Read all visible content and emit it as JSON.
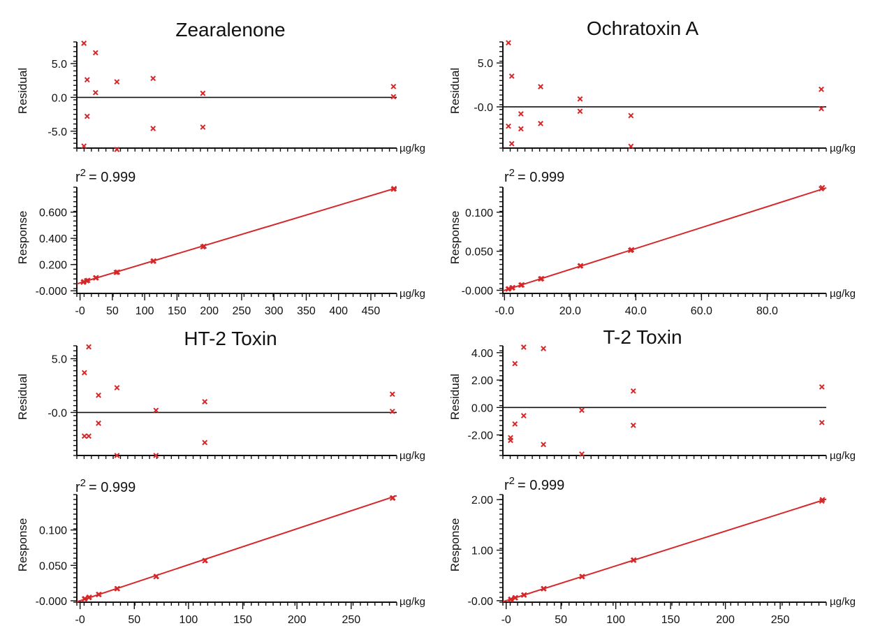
{
  "chart_data": [
    {
      "type": "scatter",
      "title": "Zearalenone",
      "residual": {
        "ylabel": "Residual",
        "xunit": "µg/kg",
        "xlim": [
          -5,
          490
        ],
        "ylim": [
          -7.5,
          8.2
        ],
        "yticks": [
          5.0,
          0.0,
          -5.0
        ],
        "yticklabels": [
          "5.0",
          "0.0",
          "-5.0"
        ],
        "points": [
          [
            6,
            8.0
          ],
          [
            6,
            -7.2
          ],
          [
            11,
            2.6
          ],
          [
            11,
            -2.8
          ],
          [
            24,
            6.6
          ],
          [
            24,
            0.7
          ],
          [
            57,
            2.3
          ],
          [
            57,
            -7.7
          ],
          [
            113,
            2.8
          ],
          [
            113,
            -4.6
          ],
          [
            190,
            0.6
          ],
          [
            190,
            -4.4
          ],
          [
            485,
            1.6
          ],
          [
            485,
            0.1
          ]
        ]
      },
      "response": {
        "ylabel": "Response",
        "xunit": "µg/kg",
        "r2_label": "r",
        "r2_sup": "2",
        "r2_value": "= 0.999",
        "xlim": [
          -5,
          490
        ],
        "ylim": [
          -0.02,
          0.79
        ],
        "xticks": [
          0,
          50,
          100,
          150,
          200,
          250,
          300,
          350,
          400,
          450
        ],
        "xticklabels": [
          "-0",
          "50",
          "100",
          "150",
          "200",
          "250",
          "300",
          "350",
          "400",
          "450"
        ],
        "yticks": [
          0.0,
          0.2,
          0.4,
          0.6
        ],
        "yticklabels": [
          "-0.000",
          "0.200",
          "0.400",
          "0.600"
        ],
        "fit": [
          [
            -5,
            0.053
          ],
          [
            490,
            0.785
          ]
        ],
        "points": [
          [
            5,
            0.065
          ],
          [
            6,
            0.07
          ],
          [
            10,
            0.076
          ],
          [
            12,
            0.08
          ],
          [
            24,
            0.098
          ],
          [
            25,
            0.1
          ],
          [
            56,
            0.14
          ],
          [
            58,
            0.143
          ],
          [
            113,
            0.225
          ],
          [
            114,
            0.228
          ],
          [
            190,
            0.335
          ],
          [
            192,
            0.34
          ],
          [
            485,
            0.775
          ],
          [
            486,
            0.78
          ]
        ]
      }
    },
    {
      "type": "scatter",
      "title": "Ochratoxin A",
      "residual": {
        "ylabel": "Residual",
        "xunit": "µg/kg",
        "xlim": [
          -0.5,
          98
        ],
        "ylim": [
          -4.7,
          7.4
        ],
        "yticks": [
          5.0,
          0.0
        ],
        "yticklabels": [
          "5.0",
          "-0.0"
        ],
        "points": [
          [
            1.2,
            7.3
          ],
          [
            1.2,
            -2.2
          ],
          [
            2.2,
            3.5
          ],
          [
            2.2,
            -4.2
          ],
          [
            5.0,
            -0.8
          ],
          [
            5.0,
            -2.5
          ],
          [
            11,
            2.3
          ],
          [
            11,
            -1.9
          ],
          [
            23,
            0.9
          ],
          [
            23,
            -0.5
          ],
          [
            38.5,
            -1.0
          ],
          [
            38.5,
            -4.5
          ],
          [
            96.5,
            2.0
          ],
          [
            96.5,
            -0.2
          ]
        ]
      },
      "response": {
        "ylabel": "Response",
        "xunit": "µg/kg",
        "r2_label": "r",
        "r2_sup": "2",
        "r2_value": "= 0.999",
        "xlim": [
          -0.5,
          98
        ],
        "ylim": [
          -0.004,
          0.132
        ],
        "xticks": [
          0,
          20,
          40,
          60,
          80
        ],
        "xticklabels": [
          "-0.0",
          "20.0",
          "40.0",
          "60.0",
          "80.0"
        ],
        "yticks": [
          0.0,
          0.05,
          0.1
        ],
        "yticklabels": [
          "-0.000",
          "0.050",
          "0.100"
        ],
        "fit": [
          [
            -0.5,
            -0.0007
          ],
          [
            98,
            0.1312
          ]
        ],
        "points": [
          [
            1.1,
            0.0015
          ],
          [
            1.3,
            0.002
          ],
          [
            2.3,
            0.003
          ],
          [
            2.5,
            0.0035
          ],
          [
            5.0,
            0.0065
          ],
          [
            5.3,
            0.007
          ],
          [
            11,
            0.0145
          ],
          [
            11.3,
            0.015
          ],
          [
            23,
            0.031
          ],
          [
            23.2,
            0.0315
          ],
          [
            38.4,
            0.051
          ],
          [
            38.7,
            0.052
          ],
          [
            96.5,
            0.13
          ],
          [
            96.8,
            0.1315
          ]
        ]
      }
    },
    {
      "type": "scatter",
      "title": "HT-2 Toxin",
      "residual": {
        "ylabel": "Residual",
        "xunit": "µg/kg",
        "xlim": [
          -3,
          292
        ],
        "ylim": [
          -4.0,
          6.2
        ],
        "yticks": [
          5.0,
          0.0
        ],
        "yticklabels": [
          "5.0",
          "-0.0"
        ],
        "points": [
          [
            4,
            3.7
          ],
          [
            4,
            -2.2
          ],
          [
            8,
            6.1
          ],
          [
            8,
            -2.2
          ],
          [
            17,
            1.6
          ],
          [
            17,
            -1.0
          ],
          [
            34,
            2.3
          ],
          [
            34,
            -4.0
          ],
          [
            70,
            0.2
          ],
          [
            70,
            -4.0
          ],
          [
            115,
            1.0
          ],
          [
            115,
            -2.8
          ],
          [
            288,
            1.7
          ],
          [
            288,
            0.1
          ]
        ]
      },
      "response": {
        "ylabel": "Response",
        "xunit": "µg/kg",
        "r2_label": "r",
        "r2_sup": "2",
        "r2_value": "= 0.999",
        "xlim": [
          -3,
          292
        ],
        "ylim": [
          -0.002,
          0.15
        ],
        "xticks": [
          0,
          50,
          100,
          150,
          200,
          250
        ],
        "xticklabels": [
          "-0",
          "50",
          "100",
          "150",
          "200",
          "250"
        ],
        "yticks": [
          0.0,
          0.05,
          0.1
        ],
        "yticklabels": [
          "-0.000",
          "0.050",
          "0.100"
        ],
        "fit": [
          [
            -3,
            -0.0015
          ],
          [
            292,
            0.1485
          ]
        ],
        "points": [
          [
            4,
            0.0025
          ],
          [
            4.5,
            0.003
          ],
          [
            8,
            0.0045
          ],
          [
            8.5,
            0.005
          ],
          [
            17,
            0.0088
          ],
          [
            17.5,
            0.009
          ],
          [
            34,
            0.017
          ],
          [
            34.5,
            0.0172
          ],
          [
            70,
            0.034
          ],
          [
            70.5,
            0.0345
          ],
          [
            115,
            0.0565
          ],
          [
            115.5,
            0.057
          ],
          [
            288,
            0.145
          ],
          [
            288.5,
            0.1455
          ]
        ]
      }
    },
    {
      "type": "scatter",
      "title": "T-2 Toxin",
      "residual": {
        "ylabel": "Residual",
        "xunit": "µg/kg",
        "xlim": [
          -3,
          292
        ],
        "ylim": [
          -3.5,
          4.5
        ],
        "yticks": [
          4.0,
          2.0,
          0.0,
          -2.0
        ],
        "yticklabels": [
          "4.00",
          "2.00",
          "0.00",
          "-2.00"
        ],
        "points": [
          [
            4,
            -2.2
          ],
          [
            4,
            -2.4
          ],
          [
            8,
            3.2
          ],
          [
            8,
            -1.2
          ],
          [
            16,
            4.4
          ],
          [
            16,
            -0.6
          ],
          [
            34,
            4.3
          ],
          [
            34,
            -2.7
          ],
          [
            69,
            -0.2
          ],
          [
            69,
            -3.4
          ],
          [
            116,
            1.2
          ],
          [
            116,
            -1.3
          ],
          [
            288,
            1.5
          ],
          [
            288,
            -1.1
          ]
        ]
      },
      "response": {
        "ylabel": "Response",
        "xunit": "µg/kg",
        "r2_label": "r",
        "r2_sup": "2",
        "r2_value": "= 0.999",
        "xlim": [
          -3,
          292
        ],
        "ylim": [
          -0.03,
          2.1
        ],
        "xticks": [
          0,
          50,
          100,
          150,
          200,
          250
        ],
        "xticklabels": [
          "-0",
          "50",
          "100",
          "150",
          "200",
          "250"
        ],
        "yticks": [
          0.0,
          1.0,
          2.0
        ],
        "yticklabels": [
          "-0.00",
          "1.00",
          "2.00"
        ],
        "fit": [
          [
            -3,
            -0.02
          ],
          [
            292,
            2.01
          ]
        ],
        "points": [
          [
            4,
            0.02
          ],
          [
            4.5,
            0.03
          ],
          [
            8,
            0.055
          ],
          [
            8.5,
            0.06
          ],
          [
            16,
            0.11
          ],
          [
            16.5,
            0.115
          ],
          [
            34,
            0.235
          ],
          [
            34.5,
            0.24
          ],
          [
            69,
            0.475
          ],
          [
            69.5,
            0.48
          ],
          [
            116,
            0.8
          ],
          [
            116.5,
            0.805
          ],
          [
            288,
            1.97
          ],
          [
            288.5,
            2.0
          ]
        ]
      }
    }
  ]
}
